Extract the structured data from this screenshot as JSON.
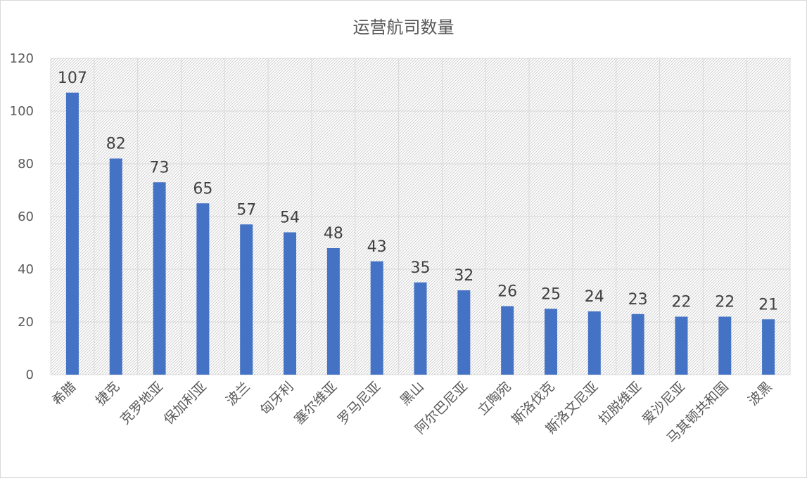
{
  "chart_data": {
    "type": "bar",
    "title": "运营航司数量",
    "xlabel": "",
    "ylabel": "",
    "ylim": [
      0,
      120
    ],
    "yticks": [
      0,
      20,
      40,
      60,
      80,
      100,
      120
    ],
    "grid": true,
    "legend": "none",
    "categories": [
      "希腊",
      "捷克",
      "克罗地亚",
      "保加利亚",
      "波兰",
      "匈牙利",
      "塞尔维亚",
      "罗马尼亚",
      "黑山",
      "阿尔巴尼亚",
      "立陶宛",
      "斯洛伐克",
      "斯洛文尼亚",
      "拉脱维亚",
      "爱沙尼亚",
      "马其顿共和国",
      "波黑"
    ],
    "values": [
      107,
      82,
      73,
      65,
      57,
      54,
      48,
      43,
      35,
      32,
      26,
      25,
      24,
      23,
      22,
      22,
      21
    ],
    "colors": {
      "bar": "#4472c4",
      "grid": "#d9d9d9",
      "text": "#595959",
      "label": "#404040"
    }
  }
}
